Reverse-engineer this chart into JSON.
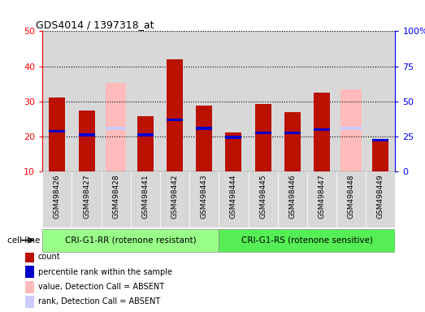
{
  "title": "GDS4014 / 1397318_at",
  "samples": [
    "GSM498426",
    "GSM498427",
    "GSM498428",
    "GSM498441",
    "GSM498442",
    "GSM498443",
    "GSM498444",
    "GSM498445",
    "GSM498446",
    "GSM498447",
    "GSM498448",
    "GSM498449"
  ],
  "count_values": [
    31.2,
    27.3,
    null,
    25.7,
    42.1,
    28.7,
    21.1,
    29.3,
    27.0,
    32.5,
    null,
    19.0
  ],
  "rank_values": [
    21.5,
    20.5,
    null,
    20.5,
    24.8,
    22.3,
    19.8,
    21.0,
    21.0,
    22.0,
    null,
    19.0
  ],
  "absent_value_bars": [
    null,
    null,
    35.3,
    null,
    null,
    null,
    null,
    null,
    null,
    null,
    33.5,
    null
  ],
  "absent_rank_bars": [
    null,
    null,
    22.3,
    null,
    null,
    null,
    null,
    null,
    null,
    null,
    22.3,
    null
  ],
  "groups": [
    {
      "label": "CRI-G1-RR (rotenone resistant)",
      "start": 0,
      "end": 6,
      "color": "#99ff88"
    },
    {
      "label": "CRI-G1-RS (rotenone sensitive)",
      "start": 6,
      "end": 12,
      "color": "#55ee55"
    }
  ],
  "group_row_label": "cell line",
  "ylim_left": [
    10,
    50
  ],
  "ylim_right": [
    0,
    100
  ],
  "yticks_left": [
    10,
    20,
    30,
    40,
    50
  ],
  "yticks_right": [
    0,
    25,
    50,
    75,
    100
  ],
  "bar_width": 0.55,
  "absent_bar_width": 0.7,
  "color_count": "#bb1100",
  "color_rank": "#0000cc",
  "color_absent_value": "#ffbbbb",
  "color_absent_rank": "#ccccff",
  "col_bg": "#d8d8d8",
  "legend_items": [
    {
      "color": "#bb1100",
      "label": "count"
    },
    {
      "color": "#0000cc",
      "label": "percentile rank within the sample"
    },
    {
      "color": "#ffbbbb",
      "label": "value, Detection Call = ABSENT"
    },
    {
      "color": "#ccccff",
      "label": "rank, Detection Call = ABSENT"
    }
  ]
}
